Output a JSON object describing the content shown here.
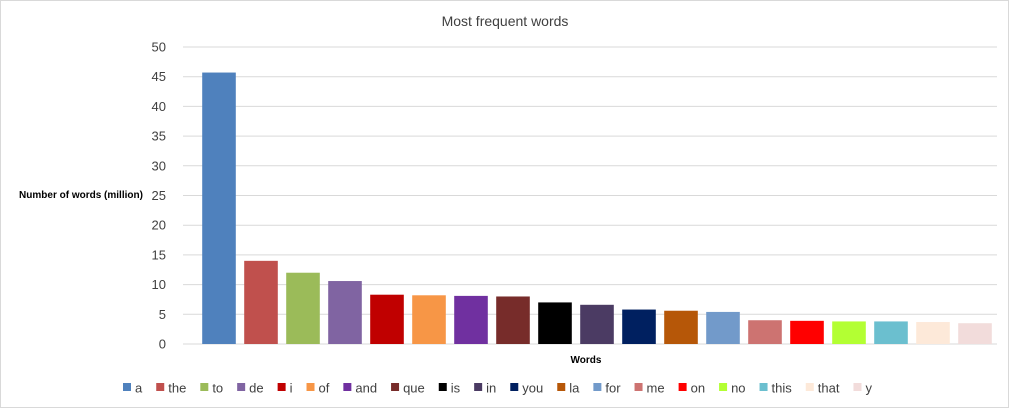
{
  "chart_data": {
    "type": "bar",
    "title": "Most frequent words",
    "xlabel": "Words",
    "ylabel": "Number of words (million)",
    "ylim": [
      0,
      50
    ],
    "yticks": [
      0,
      5,
      10,
      15,
      20,
      25,
      30,
      35,
      40,
      45,
      50
    ],
    "grid": true,
    "legend_position": "bottom",
    "categories": [
      "a",
      "the",
      "to",
      "de",
      "i",
      "of",
      "and",
      "que",
      "is",
      "in",
      "you",
      "la",
      "for",
      "me",
      "on",
      "no",
      "this",
      "that",
      "y"
    ],
    "values": [
      45.7,
      14.0,
      12.0,
      10.6,
      8.3,
      8.2,
      8.1,
      8.0,
      7.0,
      6.6,
      5.8,
      5.6,
      5.4,
      4.0,
      3.9,
      3.8,
      3.8,
      3.7,
      3.5
    ],
    "colors": [
      "#4f81bd",
      "#c0504d",
      "#9bbb59",
      "#8064a2",
      "#c00000",
      "#f79646",
      "#7030a0",
      "#772c2a",
      "#000000",
      "#4b3b63",
      "#002060",
      "#b65708",
      "#729aca",
      "#cd7371",
      "#ff0000",
      "#b3ff33",
      "#6bbfcf",
      "#fde9d9",
      "#f2dcdb"
    ]
  }
}
